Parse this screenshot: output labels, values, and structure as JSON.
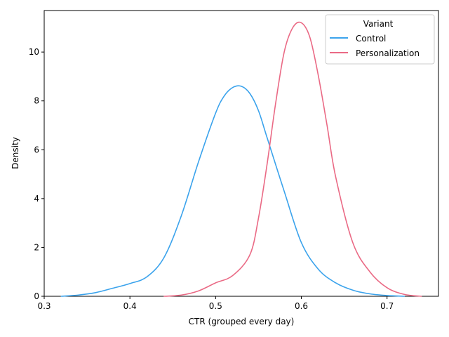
{
  "chart_data": {
    "type": "line",
    "title": "",
    "xlabel": "CTR (grouped every day)",
    "ylabel": "Density",
    "xlim": [
      0.3,
      0.76
    ],
    "ylim": [
      0,
      11.7
    ],
    "xticks": [
      0.3,
      0.4,
      0.5,
      0.6,
      0.7
    ],
    "xtick_labels": [
      "0.3",
      "0.4",
      "0.5",
      "0.6",
      "0.7"
    ],
    "yticks": [
      0,
      2,
      4,
      6,
      8,
      10
    ],
    "ytick_labels": [
      "0",
      "2",
      "4",
      "6",
      "8",
      "10"
    ],
    "grid": false,
    "legend": {
      "title": "Variant",
      "placement": "top-right"
    },
    "series": [
      {
        "name": "Control",
        "color": "#3ba3ec",
        "x": [
          0.32,
          0.34,
          0.36,
          0.38,
          0.4,
          0.42,
          0.44,
          0.46,
          0.48,
          0.5,
          0.51,
          0.52,
          0.53,
          0.54,
          0.55,
          0.56,
          0.58,
          0.6,
          0.62,
          0.64,
          0.66,
          0.68,
          0.7,
          0.72
        ],
        "y": [
          0.0,
          0.05,
          0.15,
          0.33,
          0.52,
          0.8,
          1.6,
          3.3,
          5.5,
          7.5,
          8.2,
          8.55,
          8.6,
          8.3,
          7.6,
          6.5,
          4.3,
          2.2,
          1.1,
          0.55,
          0.25,
          0.1,
          0.03,
          0.0
        ]
      },
      {
        "name": "Personalization",
        "color": "#ea6a85",
        "x": [
          0.44,
          0.46,
          0.48,
          0.5,
          0.52,
          0.54,
          0.55,
          0.56,
          0.57,
          0.58,
          0.59,
          0.6,
          0.61,
          0.62,
          0.63,
          0.64,
          0.66,
          0.68,
          0.7,
          0.72,
          0.74
        ],
        "y": [
          0.0,
          0.05,
          0.22,
          0.55,
          0.85,
          1.7,
          3.2,
          5.4,
          7.9,
          10.0,
          11.0,
          11.2,
          10.6,
          9.0,
          7.0,
          4.9,
          2.2,
          1.0,
          0.35,
          0.08,
          0.0
        ]
      }
    ]
  }
}
